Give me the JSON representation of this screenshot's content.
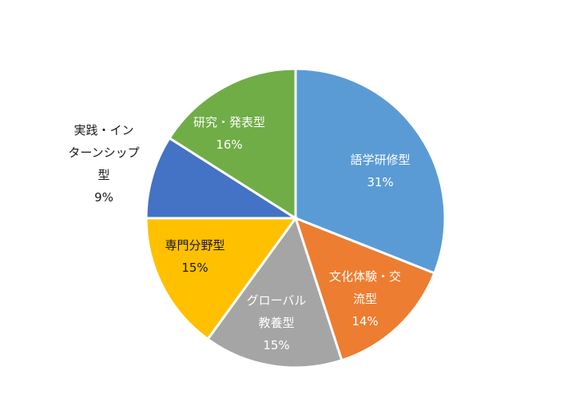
{
  "chart_data": {
    "type": "pie",
    "title": "",
    "slices": [
      {
        "label_lines": [
          "語学研修型"
        ],
        "percent_label": "31%",
        "value": 31,
        "color": "#5B9BD5",
        "label_color": "#ffffff",
        "label_position": "inside"
      },
      {
        "label_lines": [
          "文化体験・交",
          "流型"
        ],
        "percent_label": "14%",
        "value": 14,
        "color": "#ED7D31",
        "label_color": "#ffffff",
        "label_position": "inside"
      },
      {
        "label_lines": [
          "グローバル",
          "教養型"
        ],
        "percent_label": "15%",
        "value": 15,
        "color": "#A5A5A5",
        "label_color": "#ffffff",
        "label_position": "inside"
      },
      {
        "label_lines": [
          "専門分野型"
        ],
        "percent_label": "15%",
        "value": 15,
        "color": "#FFC000",
        "label_color": "#1a1a1a",
        "label_position": "inside"
      },
      {
        "label_lines": [
          "実践・イン",
          "ターンシップ",
          "型"
        ],
        "percent_label": "9%",
        "value": 9,
        "color": "#4472C4",
        "label_color": "#1a1a1a",
        "label_position": "outside"
      },
      {
        "label_lines": [
          "研究・発表型"
        ],
        "percent_label": "16%",
        "value": 16,
        "color": "#70AD47",
        "label_color": "#ffffff",
        "label_position": "inside"
      }
    ],
    "start": "12 o'clock",
    "direction": "clockwise",
    "legend": "none"
  }
}
